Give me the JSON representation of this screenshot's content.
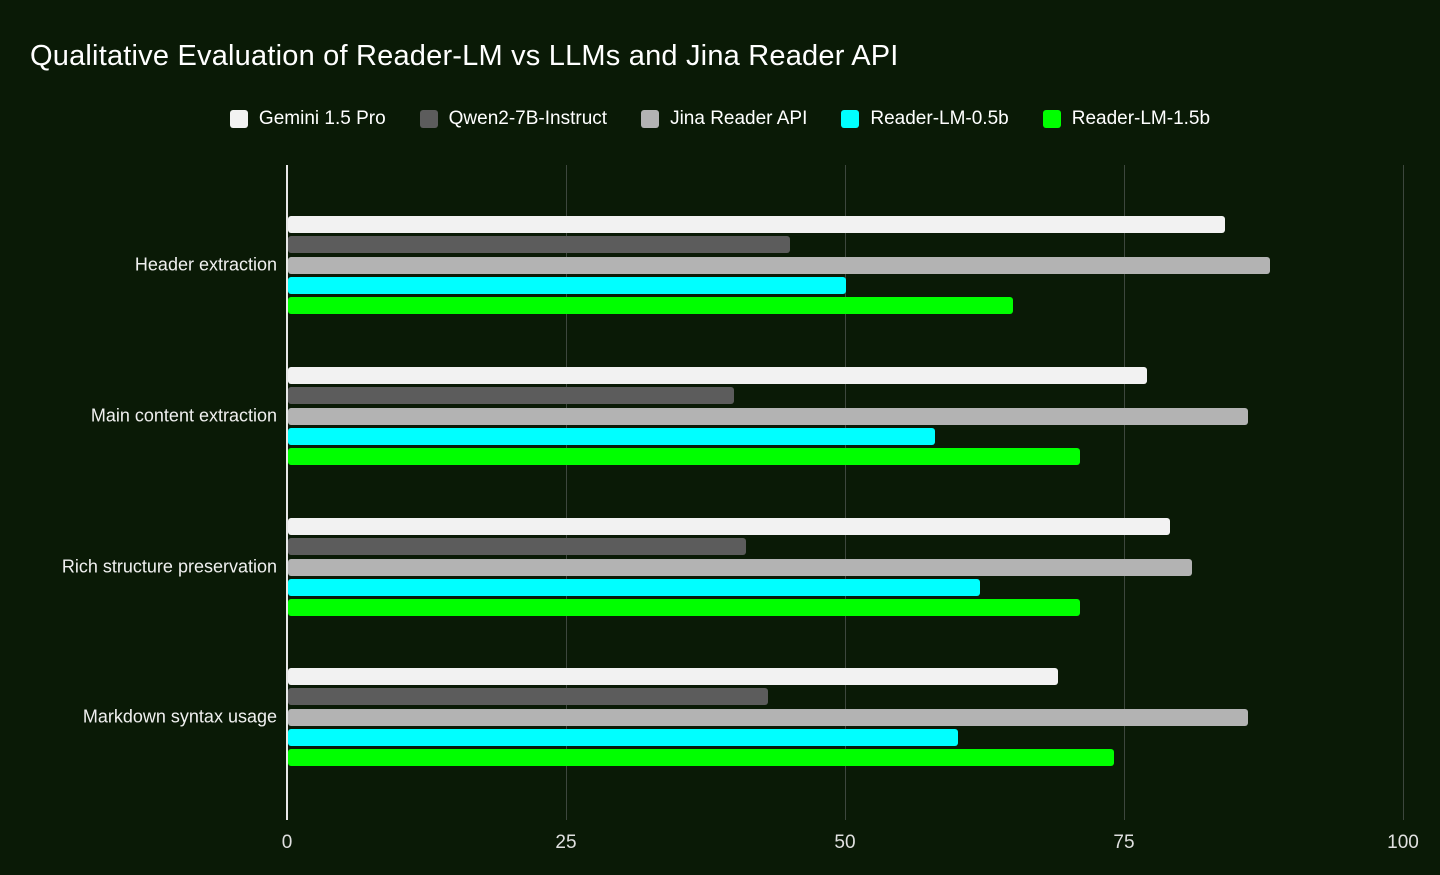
{
  "colors": {
    "background": "#0a1a06",
    "title_text": "#ffffff",
    "axis_line": "#e8e8e8",
    "gridline": "#3d473d",
    "tick_label": "#e0e0e0",
    "category_label": "#f0f0f0",
    "legend_label": "#ffffff"
  },
  "chart_data": {
    "type": "bar",
    "orientation": "horizontal",
    "title": "Qualitative Evaluation of Reader-LM vs LLMs and Jina Reader API",
    "categories": [
      "Header extraction",
      "Main content extraction",
      "Rich structure preservation",
      "Markdown syntax usage"
    ],
    "series": [
      {
        "name": "Gemini 1.5 Pro",
        "color": "#f2f2f2",
        "values": [
          84,
          77,
          79,
          69
        ]
      },
      {
        "name": "Qwen2-7B-Instruct",
        "color": "#5c5c5c",
        "values": [
          45,
          40,
          41,
          43
        ]
      },
      {
        "name": "Jina Reader API",
        "color": "#b3b3b3",
        "values": [
          88,
          86,
          81,
          86
        ]
      },
      {
        "name": "Reader-LM-0.5b",
        "color": "#00ffff",
        "values": [
          50,
          58,
          62,
          60
        ]
      },
      {
        "name": "Reader-LM-1.5b",
        "color": "#00ff00",
        "values": [
          65,
          71,
          71,
          74
        ]
      }
    ],
    "x_ticks": [
      0,
      25,
      50,
      75,
      100
    ],
    "xlim": [
      0,
      100
    ],
    "xlabel": "",
    "ylabel": "",
    "legend_position": "top-center",
    "grid": "vertical"
  }
}
